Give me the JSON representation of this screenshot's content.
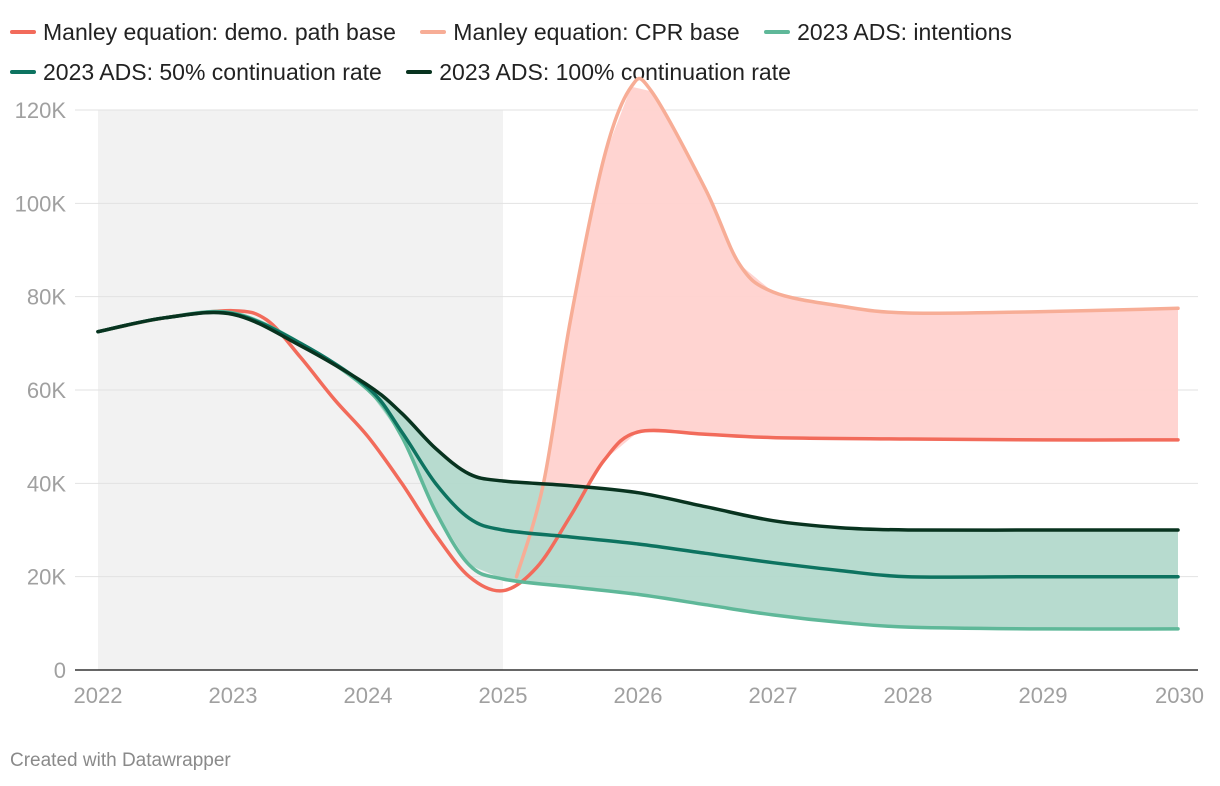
{
  "chart_data": {
    "type": "line",
    "x_range": [
      2022,
      2030
    ],
    "ylim": [
      0,
      120000
    ],
    "y_ticks": [
      {
        "value": 0,
        "label": "0"
      },
      {
        "value": 20000,
        "label": "20K"
      },
      {
        "value": 40000,
        "label": "40K"
      },
      {
        "value": 60000,
        "label": "60K"
      },
      {
        "value": 80000,
        "label": "80K"
      },
      {
        "value": 100000,
        "label": "100K"
      },
      {
        "value": 120000,
        "label": "120K"
      }
    ],
    "x_ticks": [
      {
        "value": 2022,
        "label": "2022"
      },
      {
        "value": 2023,
        "label": "2023"
      },
      {
        "value": 2024,
        "label": "2024"
      },
      {
        "value": 2025,
        "label": "2025"
      },
      {
        "value": 2026,
        "label": "2026"
      },
      {
        "value": 2027,
        "label": "2027"
      },
      {
        "value": 2028,
        "label": "2028"
      },
      {
        "value": 2029,
        "label": "2029"
      },
      {
        "value": 2030,
        "label": "2030"
      }
    ],
    "shaded_period": [
      2022,
      2025
    ],
    "grid": true,
    "legend_position": "top",
    "series": [
      {
        "name": "Manley equation: demo. path base",
        "color": "#f26b5b",
        "points": [
          [
            2022,
            72500
          ],
          [
            2022.5,
            75500
          ],
          [
            2023,
            77000
          ],
          [
            2023.25,
            75000
          ],
          [
            2023.5,
            67000
          ],
          [
            2023.75,
            58000
          ],
          [
            2024,
            50000
          ],
          [
            2024.25,
            40000
          ],
          [
            2024.5,
            29000
          ],
          [
            2024.75,
            20000
          ],
          [
            2025,
            17000
          ],
          [
            2025.25,
            22000
          ],
          [
            2025.5,
            33000
          ],
          [
            2025.75,
            45000
          ],
          [
            2026,
            51000
          ],
          [
            2026.5,
            50500
          ],
          [
            2027,
            49800
          ],
          [
            2028,
            49500
          ],
          [
            2029,
            49300
          ],
          [
            2030,
            49300
          ]
        ]
      },
      {
        "name": "Manley equation: CPR base",
        "color": "#f7ad96",
        "points": [
          [
            2025.1,
            20000
          ],
          [
            2025.3,
            40000
          ],
          [
            2025.5,
            75000
          ],
          [
            2025.75,
            110000
          ],
          [
            2025.95,
            125000
          ],
          [
            2026.1,
            124000
          ],
          [
            2026.5,
            103000
          ],
          [
            2026.75,
            87000
          ],
          [
            2027,
            81000
          ],
          [
            2027.5,
            78000
          ],
          [
            2028,
            76500
          ],
          [
            2029,
            76800
          ],
          [
            2030,
            77500
          ]
        ]
      },
      {
        "name": "2023 ADS: intentions",
        "color": "#5fb899",
        "points": [
          [
            2022,
            72500
          ],
          [
            2022.5,
            75500
          ],
          [
            2023,
            76500
          ],
          [
            2023.5,
            70000
          ],
          [
            2024,
            60000
          ],
          [
            2024.25,
            50000
          ],
          [
            2024.5,
            34000
          ],
          [
            2024.75,
            22500
          ],
          [
            2025,
            19500
          ],
          [
            2025.5,
            17800
          ],
          [
            2026,
            16200
          ],
          [
            2026.5,
            14000
          ],
          [
            2027,
            11800
          ],
          [
            2027.5,
            10200
          ],
          [
            2028,
            9200
          ],
          [
            2029,
            8800
          ],
          [
            2030,
            8800
          ]
        ]
      },
      {
        "name": "2023 ADS: 50% continuation rate",
        "color": "#0d7360",
        "points": [
          [
            2022,
            72500
          ],
          [
            2022.5,
            75500
          ],
          [
            2023,
            76300
          ],
          [
            2023.5,
            70000
          ],
          [
            2024,
            60500
          ],
          [
            2024.25,
            51000
          ],
          [
            2024.5,
            40000
          ],
          [
            2024.75,
            32500
          ],
          [
            2025,
            30000
          ],
          [
            2025.5,
            28500
          ],
          [
            2026,
            27000
          ],
          [
            2026.5,
            25000
          ],
          [
            2027,
            23000
          ],
          [
            2027.5,
            21300
          ],
          [
            2028,
            20000
          ],
          [
            2029,
            20000
          ],
          [
            2030,
            20000
          ]
        ]
      },
      {
        "name": "2023 ADS: 100% continuation rate",
        "color": "#08331f",
        "points": [
          [
            2022,
            72500
          ],
          [
            2022.5,
            75500
          ],
          [
            2023,
            76200
          ],
          [
            2023.5,
            69500
          ],
          [
            2024,
            61000
          ],
          [
            2024.25,
            55000
          ],
          [
            2024.5,
            47500
          ],
          [
            2024.75,
            42000
          ],
          [
            2025,
            40500
          ],
          [
            2025.5,
            39500
          ],
          [
            2026,
            38000
          ],
          [
            2026.5,
            35000
          ],
          [
            2027,
            32000
          ],
          [
            2027.5,
            30500
          ],
          [
            2028,
            30000
          ],
          [
            2029,
            30000
          ],
          [
            2030,
            30000
          ]
        ]
      }
    ],
    "ranges": [
      {
        "between": [
          "Manley equation: demo. path base",
          "Manley equation: CPR base"
        ],
        "color": "#ffd2cf",
        "from": 2025.1,
        "to": 2030
      },
      {
        "between": [
          "2023 ADS: intentions",
          "2023 ADS: 100% continuation rate"
        ],
        "color": "#b3d9cc",
        "from": 2024,
        "to": 2030
      }
    ]
  },
  "legend": {
    "items": [
      {
        "label": "Manley equation: demo. path base",
        "color": "#f26b5b"
      },
      {
        "label": "Manley equation: CPR base",
        "color": "#f7ad96"
      },
      {
        "label": "2023 ADS: intentions",
        "color": "#5fb899"
      },
      {
        "label": "2023 ADS: 50% continuation rate",
        "color": "#0d7360"
      },
      {
        "label": "2023 ADS: 100% continuation rate",
        "color": "#08331f"
      }
    ]
  },
  "footer": {
    "text": "Created with Datawrapper"
  }
}
